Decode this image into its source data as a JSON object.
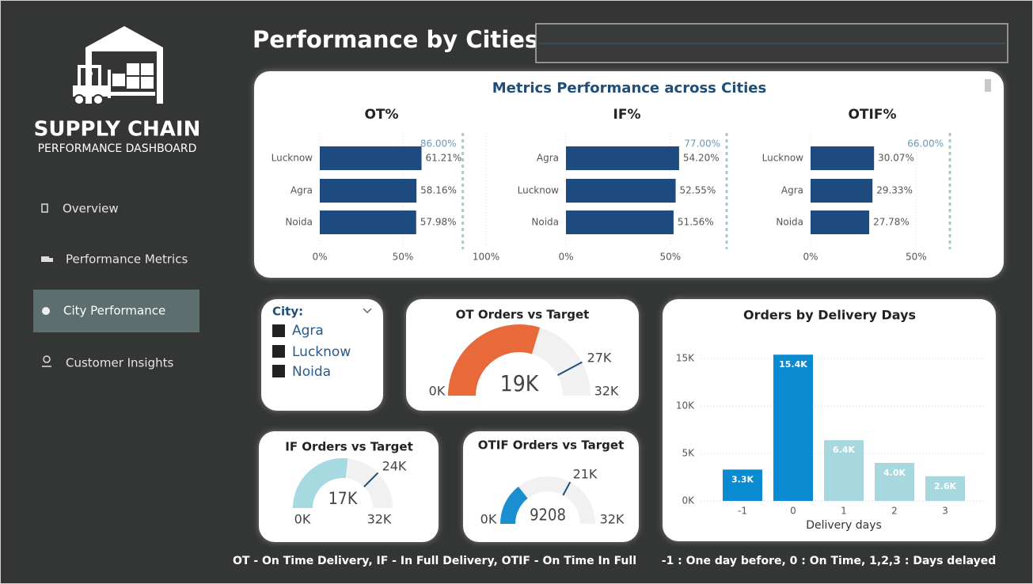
{
  "sidebar": {
    "title": "SUPPLY CHAIN",
    "subtitle": "PERFORMANCE DASHBOARD",
    "nav": [
      "Overview",
      "Performance Metrics",
      "City Performance",
      "Customer Insights"
    ]
  },
  "header": {
    "title": "Performance by Cities"
  },
  "slicer": {
    "label": "City:",
    "items": [
      "Agra",
      "Lucknow",
      "Noida"
    ]
  },
  "chart_data": [
    {
      "type": "barh",
      "title": "Metrics Performance across Cities",
      "color": "#1e4b7f",
      "panels": [
        {
          "title": "OT%",
          "categories": [
            "Lucknow",
            "Agra",
            "Noida"
          ],
          "values": [
            61.21,
            58.16,
            57.98
          ],
          "value_labels": [
            "61.21%",
            "58.16%",
            "57.98%"
          ],
          "target": {
            "value": 86,
            "label": "86.00%"
          },
          "xlim": [
            0,
            100
          ],
          "xticks": [
            {
              "value": 0,
              "label": "0%"
            },
            {
              "value": 50,
              "label": "50%"
            },
            {
              "value": 100,
              "label": "100%"
            }
          ]
        },
        {
          "title": "IF%",
          "categories": [
            "Agra",
            "Lucknow",
            "Noida"
          ],
          "values": [
            54.2,
            52.55,
            51.56
          ],
          "value_labels": [
            "54.20%",
            "52.55%",
            "51.56%"
          ],
          "target": {
            "value": 77,
            "label": "77.00%"
          },
          "xlim": [
            0,
            77
          ],
          "xticks": [
            {
              "value": 0,
              "label": "0%"
            },
            {
              "value": 50,
              "label": "50%"
            }
          ]
        },
        {
          "title": "OTIF%",
          "categories": [
            "Lucknow",
            "Agra",
            "Noida"
          ],
          "values": [
            30.07,
            29.33,
            27.78
          ],
          "value_labels": [
            "30.07%",
            "29.33%",
            "27.78%"
          ],
          "target": {
            "value": 66,
            "label": "66.00%"
          },
          "xlim": [
            0,
            66
          ],
          "xticks": [
            {
              "value": 0,
              "label": "0%"
            },
            {
              "value": 50,
              "label": "50%"
            }
          ]
        }
      ]
    },
    {
      "type": "gauge",
      "title": "OT Orders vs Target",
      "values": [
        19000
      ],
      "value_labels": [
        "19K"
      ],
      "color": "#e8693a",
      "ylim": [
        0,
        32000
      ],
      "ticks": [
        {
          "value": 0,
          "label": "0K"
        },
        {
          "value": 32000,
          "label": "32K"
        }
      ],
      "target": {
        "value": 27000,
        "label": "27K"
      }
    },
    {
      "type": "gauge",
      "title": "IF Orders vs Target",
      "values": [
        17000
      ],
      "value_labels": [
        "17K"
      ],
      "color": "#a6d9e0",
      "ylim": [
        0,
        32000
      ],
      "ticks": [
        {
          "value": 0,
          "label": "0K"
        },
        {
          "value": 32000,
          "label": "32K"
        }
      ],
      "target": {
        "value": 24000,
        "label": "24K"
      }
    },
    {
      "type": "gauge",
      "title": "OTIF Orders vs Target",
      "values": [
        9208
      ],
      "color": "#1a8fd0",
      "ylim": [
        0,
        32000
      ],
      "ticks": [
        {
          "value": 0,
          "label": "0K"
        },
        {
          "value": 32000,
          "label": "32K"
        }
      ],
      "target": {
        "value": 21000,
        "label": "21K"
      }
    },
    {
      "type": "bar",
      "title": "Orders by Delivery Days",
      "xlabel": "Delivery days",
      "categories": [
        "-1",
        "0",
        "1",
        "2",
        "3"
      ],
      "values": [
        3300,
        15400,
        6400,
        4000,
        2600
      ],
      "value_labels": [
        "3.3K",
        "15.4K",
        "6.4K",
        "4.0K",
        "2.6K"
      ],
      "colors": [
        "#0a8ad1",
        "#0a8ad1",
        "#a8d8df",
        "#a8d8df",
        "#a8d8df"
      ],
      "ylim": [
        0,
        16000
      ],
      "yticks": [
        {
          "value": 0,
          "label": "0K"
        },
        {
          "value": 5000,
          "label": "5K"
        },
        {
          "value": 10000,
          "label": "10K"
        },
        {
          "value": 15000,
          "label": "15K"
        }
      ],
      "grid": true
    }
  ],
  "footnotes": [
    "OT - On Time Delivery, IF - In Full Delivery, OTIF - On Time In Full",
    "-1 : One day before, 0 : On Time, 1,2,3 : Days delayed"
  ]
}
